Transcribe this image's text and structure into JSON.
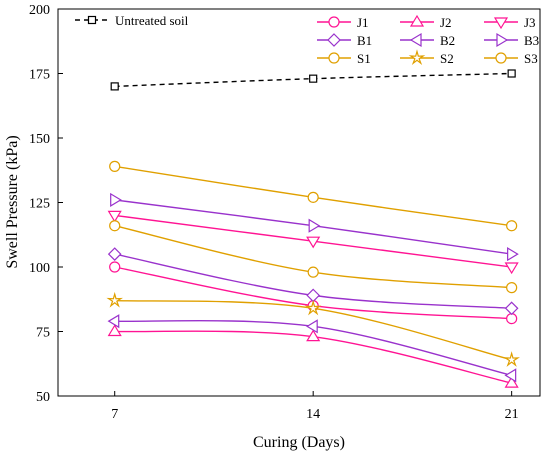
{
  "chart_data": {
    "type": "line",
    "title": "",
    "xlabel": "Curing (Days)",
    "ylabel": "Swell Pressure (kPa)",
    "x": [
      7,
      14,
      21
    ],
    "xlim": [
      5,
      22
    ],
    "ylim": [
      50,
      200
    ],
    "xticks": [
      "7",
      "14",
      "21"
    ],
    "yticks": [
      "50",
      "75",
      "100",
      "125",
      "150",
      "175",
      "200"
    ],
    "grid": false,
    "legend_placement": "top",
    "series": [
      {
        "name": "Untreated soil",
        "values": [
          170,
          173,
          175
        ],
        "color": "#000000",
        "marker": "square",
        "dashed": true
      },
      {
        "name": "J1",
        "values": [
          100,
          85,
          80
        ],
        "color": "#ff1493",
        "marker": "circle"
      },
      {
        "name": "J2",
        "values": [
          75,
          73,
          55
        ],
        "color": "#ff1493",
        "marker": "triangle-up"
      },
      {
        "name": "J3",
        "values": [
          120,
          110,
          100
        ],
        "color": "#ff1493",
        "marker": "triangle-down"
      },
      {
        "name": "B1",
        "values": [
          105,
          89,
          84
        ],
        "color": "#9932cc",
        "marker": "diamond"
      },
      {
        "name": "B2",
        "values": [
          79,
          77,
          58
        ],
        "color": "#9932cc",
        "marker": "triangle-left"
      },
      {
        "name": "B3",
        "values": [
          126,
          116,
          105
        ],
        "color": "#9932cc",
        "marker": "triangle-right"
      },
      {
        "name": "S1",
        "values": [
          116,
          98,
          92
        ],
        "color": "#e0a000",
        "marker": "circle"
      },
      {
        "name": "S2",
        "values": [
          87,
          84,
          64
        ],
        "color": "#e0a000",
        "marker": "star"
      },
      {
        "name": "S3",
        "values": [
          139,
          127,
          116
        ],
        "color": "#e0a000",
        "marker": "circle"
      }
    ]
  }
}
